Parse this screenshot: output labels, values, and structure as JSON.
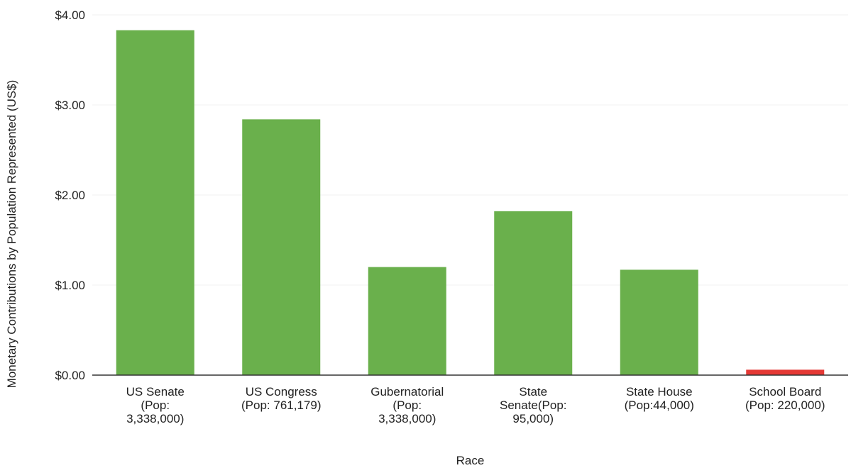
{
  "chart_data": {
    "type": "bar",
    "title": "",
    "xlabel": "Race",
    "ylabel": "Monetary Contributions by Population Represented (US$)",
    "ylim": [
      0,
      4
    ],
    "yticks": [
      "$0.00",
      "$1.00",
      "$2.00",
      "$3.00",
      "$4.00"
    ],
    "grid": true,
    "legend": "none",
    "categories": [
      "US Senate (Pop: 3,338,000)",
      "US Congress (Pop: 761,179)",
      "Gubernatorial (Pop: 3,338,000)",
      "State Senate(Pop: 95,000)",
      "State House (Pop:44,000)",
      "School Board (Pop: 220,000)"
    ],
    "category_lines": [
      [
        "US Senate",
        "(Pop:",
        "3,338,000)"
      ],
      [
        "US Congress",
        "(Pop: 761,179)"
      ],
      [
        "Gubernatorial",
        "(Pop:",
        "3,338,000)"
      ],
      [
        "State",
        "Senate(Pop:",
        "95,000)"
      ],
      [
        "State House",
        "(Pop:44,000)"
      ],
      [
        "School Board",
        "(Pop: 220,000)"
      ]
    ],
    "values": [
      3.83,
      2.84,
      1.2,
      1.82,
      1.17,
      0.06
    ],
    "colors": [
      "#6ab04c",
      "#6ab04c",
      "#6ab04c",
      "#6ab04c",
      "#6ab04c",
      "#e53935"
    ]
  }
}
